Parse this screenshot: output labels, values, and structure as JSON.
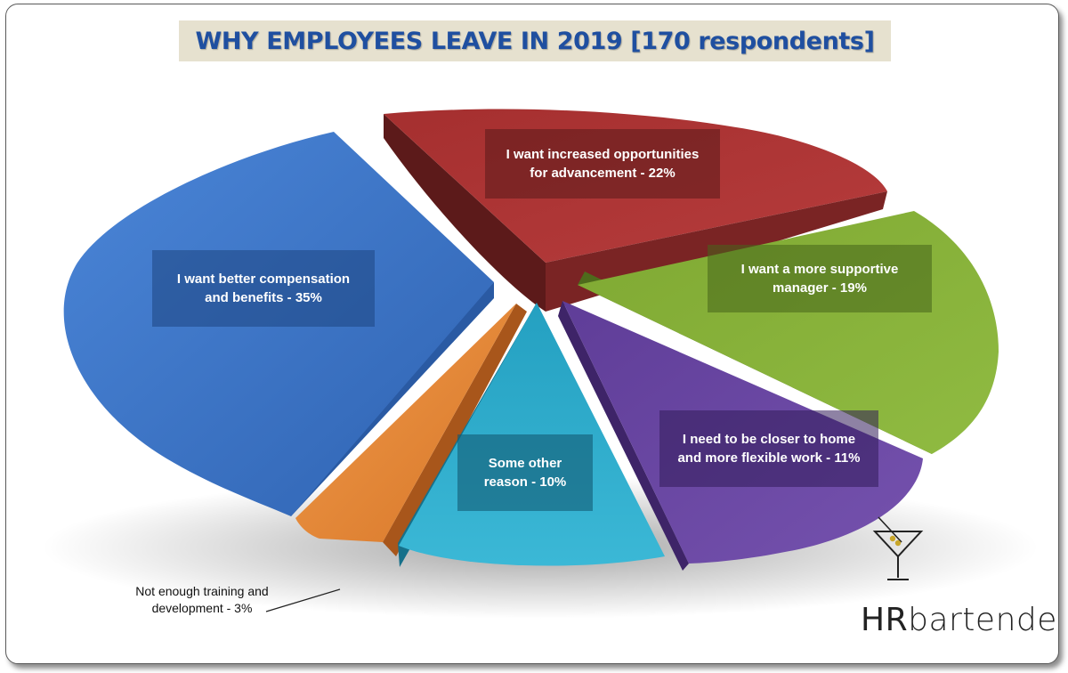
{
  "title": "WHY EMPLOYEES LEAVE IN 2019 [170 respondents]",
  "brand": {
    "prefix": "HR",
    "suffix": "bartender",
    "logo_icon": "martini-glass-icon"
  },
  "colors": {
    "compensation": "#3a72c4",
    "advancement": "#a83232",
    "manager": "#86b03a",
    "flexible": "#6a47a3",
    "other": "#2ea9c9",
    "training": "#e98a3c",
    "title": "#1f4fa0",
    "title_bg": "#e6e1cf"
  },
  "chart_data": {
    "type": "pie",
    "title": "WHY EMPLOYEES LEAVE IN 2019 [170 respondents]",
    "slices": [
      {
        "label": "I want better compensation and benefits - 35%",
        "value": 35,
        "color": "#3a72c4"
      },
      {
        "label": "I want increased opportunities for advancement - 22%",
        "value": 22,
        "color": "#a83232"
      },
      {
        "label": "I want a more supportive manager - 19%",
        "value": 19,
        "color": "#86b03a"
      },
      {
        "label": "I need to be closer to home and more flexible work - 11%",
        "value": 11,
        "color": "#6a47a3"
      },
      {
        "label": "Some other reason - 10%",
        "value": 10,
        "color": "#2ea9c9"
      },
      {
        "label": "Not enough training and development - 3%",
        "value": 3,
        "color": "#e98a3c"
      }
    ]
  },
  "labels": {
    "compensation": {
      "line1": "I want better compensation",
      "line2": "and benefits - 35%"
    },
    "advancement": {
      "line1": "I want increased opportunities",
      "line2": "for advancement - 22%"
    },
    "manager": {
      "line1": "I want a more supportive",
      "line2": "manager - 19%"
    },
    "flexible": {
      "line1": "I need to be closer to home",
      "line2": "and more flexible work - 11%"
    },
    "other": {
      "line1": "Some other",
      "line2": "reason - 10%"
    },
    "training": {
      "line1": "Not enough training and",
      "line2": "development - 3%"
    }
  }
}
